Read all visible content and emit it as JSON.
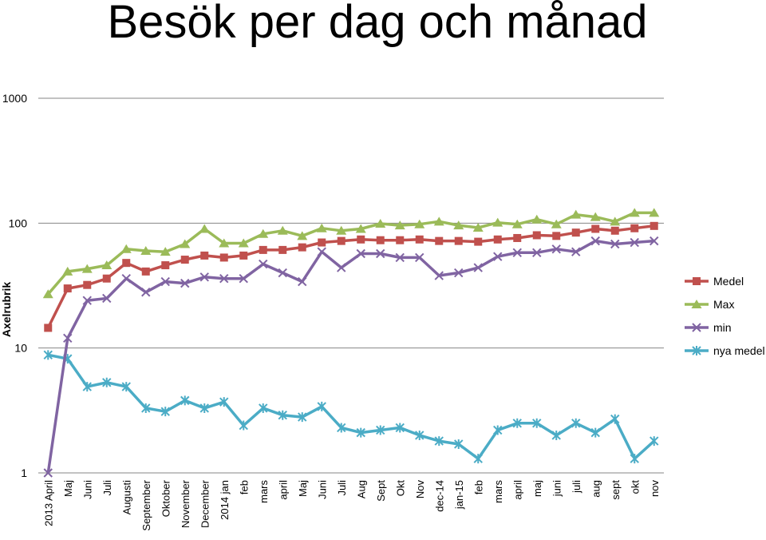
{
  "chart_data": {
    "type": "line",
    "title": "Besök per dag och månad",
    "ylabel": "Axelrubrik",
    "xlabel": "",
    "y_scale": "log",
    "ylim": [
      1,
      1000
    ],
    "y_ticks": [
      "1",
      "10",
      "100",
      "1000"
    ],
    "grid": "horizontal",
    "legend_position": "right",
    "categories": [
      "2013 April",
      "Maj",
      "Juni",
      "Juli",
      "Augusti",
      "September",
      "Oktober",
      "November",
      "December",
      "2014 jan",
      "feb",
      "mars",
      "april",
      "Maj",
      "Juni",
      "Juli",
      "Aug",
      "Sept",
      "Okt",
      "Nov",
      "dec-14",
      "jan-15",
      "feb",
      "mars",
      "april",
      "maj",
      "juni",
      "juli",
      "aug",
      "sept",
      "okt",
      "nov"
    ],
    "series": [
      {
        "name": "Medel",
        "color": "#C0504D",
        "marker": "square",
        "values": [
          14.5,
          30,
          32,
          36,
          48,
          41,
          46,
          51,
          55,
          53,
          55,
          61,
          61,
          64,
          70,
          72,
          74,
          73,
          73,
          74,
          72,
          72,
          71,
          74,
          76,
          80,
          79,
          84,
          90,
          87,
          91,
          95
        ]
      },
      {
        "name": "Max",
        "color": "#9BBB59",
        "marker": "triangle",
        "values": [
          27,
          41,
          43,
          46,
          62,
          60,
          59,
          68,
          90,
          69,
          69,
          82,
          87,
          79,
          91,
          87,
          90,
          99,
          96,
          98,
          103,
          96,
          92,
          101,
          98,
          107,
          98,
          117,
          112,
          103,
          121,
          121
        ]
      },
      {
        "name": "min",
        "color": "#8064A2",
        "marker": "x",
        "values": [
          1,
          12,
          24,
          25,
          36,
          28,
          34,
          33,
          37,
          36,
          36,
          47,
          40,
          34,
          59,
          44,
          57,
          57,
          53,
          53,
          38,
          40,
          44,
          54,
          58,
          58,
          62,
          59,
          72,
          68,
          70,
          72
        ]
      },
      {
        "name": "nya medel",
        "color": "#4BACC6",
        "marker": "star",
        "values": [
          8.8,
          8.2,
          4.9,
          5.3,
          4.9,
          3.3,
          3.1,
          3.8,
          3.3,
          3.7,
          2.4,
          3.3,
          2.9,
          2.8,
          3.4,
          2.3,
          2.1,
          2.2,
          2.3,
          2.0,
          1.8,
          1.7,
          1.3,
          2.2,
          2.5,
          2.5,
          2.0,
          2.5,
          2.1,
          2.7,
          1.3,
          1.8
        ]
      }
    ]
  }
}
